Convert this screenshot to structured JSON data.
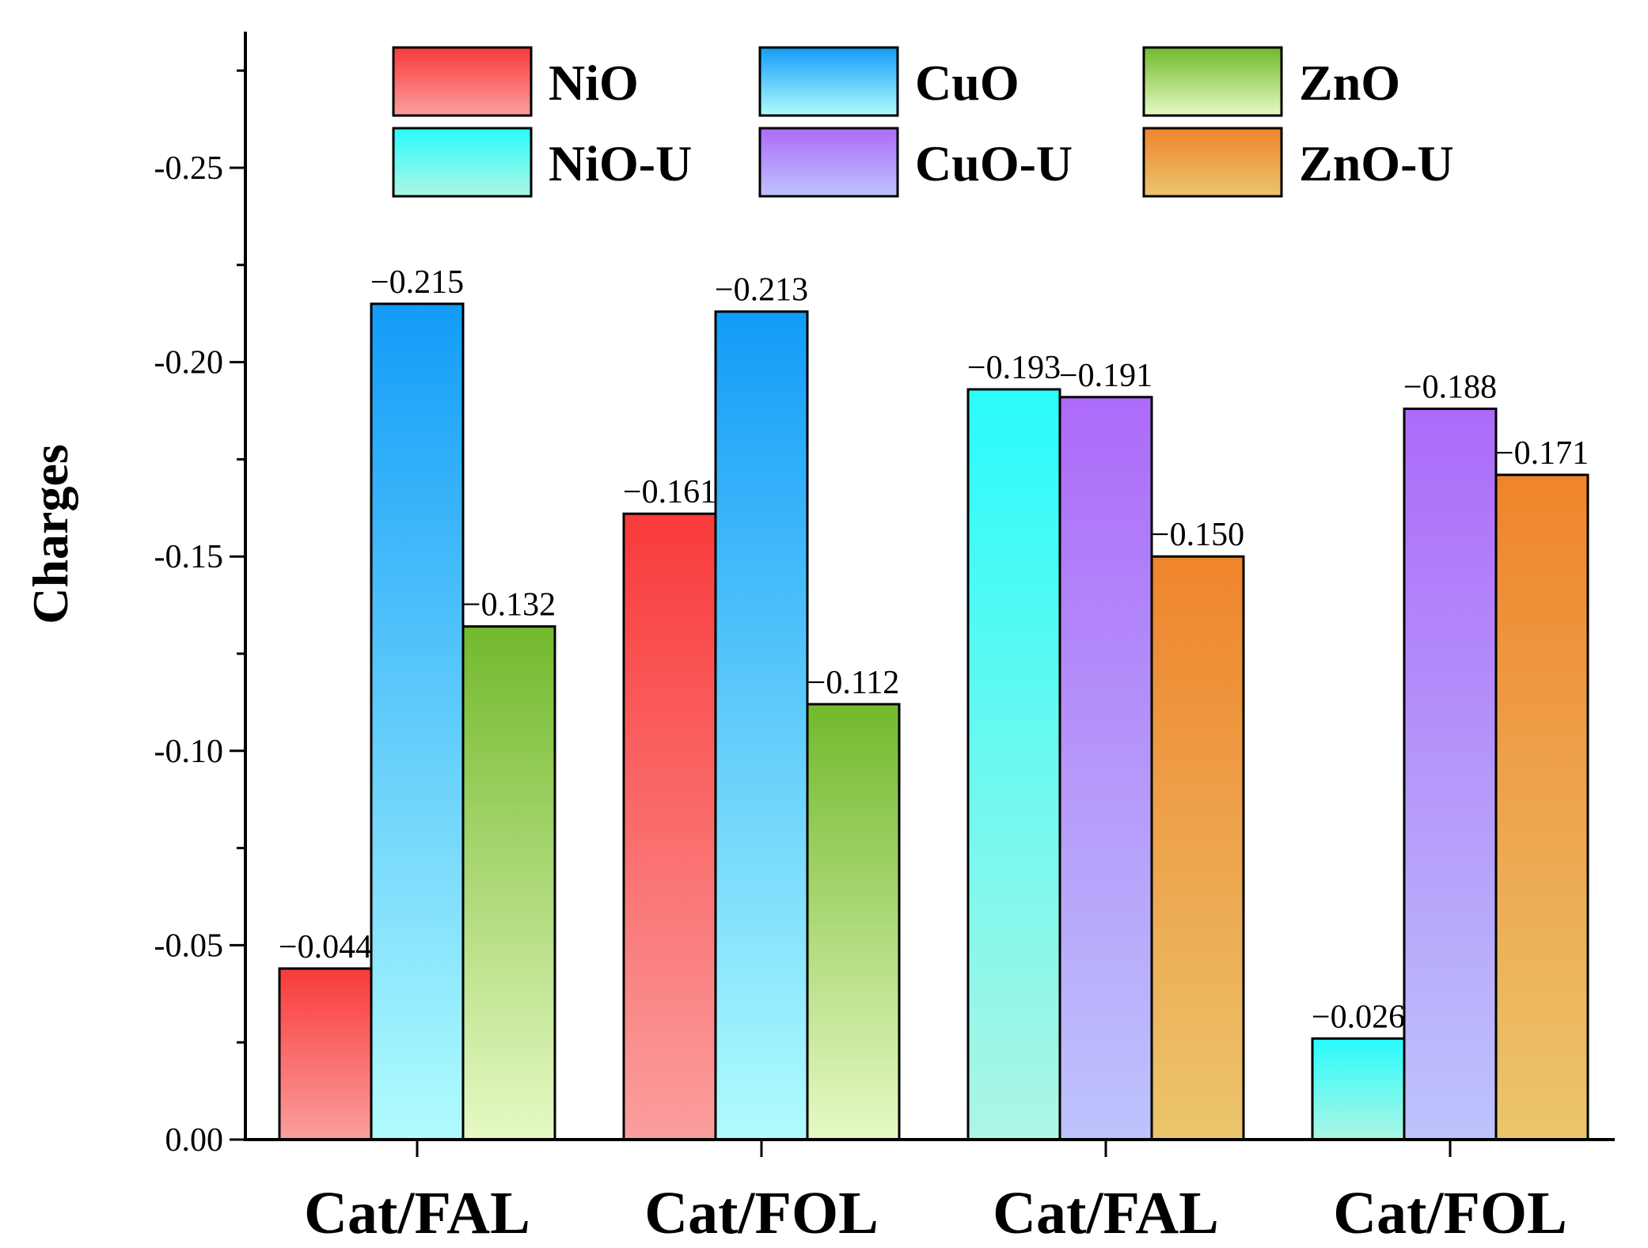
{
  "chart_data": {
    "type": "bar",
    "title": "",
    "xlabel": "",
    "ylabel": "Charges",
    "ylim": [
      0.0,
      -0.28
    ],
    "yticks": [
      "0.00",
      "-0.05",
      "-0.10",
      "-0.15",
      "-0.20",
      "-0.25"
    ],
    "ytick_values": [
      0.0,
      -0.05,
      -0.1,
      -0.15,
      -0.2,
      -0.25
    ],
    "categories": [
      "Cat/FAL",
      "Cat/FOL",
      "Cat/FAL",
      "Cat/FOL"
    ],
    "legend_position": "top",
    "series": [
      {
        "name": "NiO",
        "colors": [
          "#f93a3a",
          "#fb9e9e"
        ],
        "values": [
          -0.044,
          -0.161,
          null,
          null
        ],
        "labels": [
          "−0.044",
          "−0.161",
          null,
          null
        ]
      },
      {
        "name": "CuO",
        "colors": [
          "#129cf8",
          "#b0fcfd"
        ],
        "values": [
          -0.215,
          -0.213,
          null,
          null
        ],
        "labels": [
          "−0.215",
          "−0.213",
          null,
          null
        ]
      },
      {
        "name": "ZnO",
        "colors": [
          "#72b92c",
          "#e6f9c4"
        ],
        "values": [
          -0.132,
          -0.112,
          null,
          null
        ],
        "labels": [
          "−0.132",
          "−0.112",
          null,
          null
        ]
      },
      {
        "name": "NiO-U",
        "colors": [
          "#29fbfb",
          "#adf6e4"
        ],
        "values": [
          null,
          null,
          -0.193,
          -0.026
        ],
        "labels": [
          null,
          null,
          "−0.193",
          "−0.026"
        ]
      },
      {
        "name": "CuO-U",
        "colors": [
          "#ad6af9",
          "#bdc4fc"
        ],
        "values": [
          null,
          null,
          -0.191,
          -0.188
        ],
        "labels": [
          null,
          null,
          "−0.191",
          "−0.188"
        ]
      },
      {
        "name": "ZnO-U",
        "colors": [
          "#ef842c",
          "#ebc56d"
        ],
        "values": [
          null,
          null,
          -0.15,
          -0.171
        ],
        "labels": [
          null,
          null,
          "−0.150",
          "−0.171"
        ]
      }
    ]
  }
}
